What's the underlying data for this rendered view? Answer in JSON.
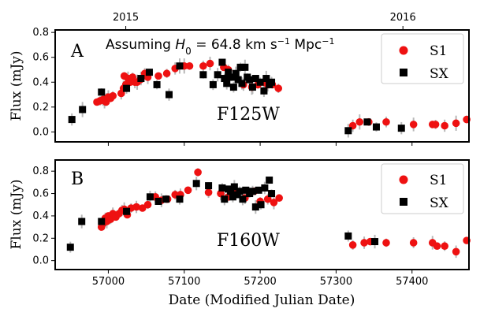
{
  "chart_data": [
    {
      "type": "scatter",
      "panel_label": "A",
      "filter_label": "F125W",
      "annotation": {
        "prefix": "Assuming ",
        "var": "H",
        "sub": "0",
        "value": " = 64.8 km s",
        "exp1": "−1",
        "mid": " Mpc",
        "exp2": "−1"
      },
      "ylabel": "Flux (mJy)",
      "xlabel": "",
      "xlim": [
        56930,
        57475
      ],
      "ylim": [
        -0.08,
        0.82
      ],
      "yticks": [
        0.0,
        0.2,
        0.4,
        0.6,
        0.8
      ],
      "ytick_labels": [
        "0.0",
        "0.2",
        "0.4",
        "0.6",
        "0.8"
      ],
      "xticks": [
        57000,
        57100,
        57200,
        57300,
        57400
      ],
      "top_axis": {
        "ticks": [
          57023,
          57388
        ],
        "labels": [
          "2015",
          "2016"
        ]
      },
      "legend": [
        "S1",
        "SX"
      ],
      "series": [
        {
          "name": "S1",
          "marker": "circle",
          "color": "#ee1111",
          "points": [
            [
              56985,
              0.24
            ],
            [
              56989,
              0.25
            ],
            [
              56993,
              0.26
            ],
            [
              56995,
              0.25
            ],
            [
              56997,
              0.24
            ],
            [
              56998,
              0.27
            ],
            [
              57000,
              0.28
            ],
            [
              57003,
              0.27
            ],
            [
              57006,
              0.29
            ],
            [
              57017,
              0.31
            ],
            [
              57020,
              0.35
            ],
            [
              57021,
              0.45
            ],
            [
              57023,
              0.38
            ],
            [
              57026,
              0.43
            ],
            [
              57029,
              0.4
            ],
            [
              57032,
              0.44
            ],
            [
              57035,
              0.4
            ],
            [
              57038,
              0.4
            ],
            [
              57042,
              0.42
            ],
            [
              57048,
              0.47
            ],
            [
              57052,
              0.44
            ],
            [
              57066,
              0.45
            ],
            [
              57077,
              0.47
            ],
            [
              57088,
              0.51
            ],
            [
              57100,
              0.53
            ],
            [
              57107,
              0.53
            ],
            [
              57125,
              0.53
            ],
            [
              57134,
              0.55
            ],
            [
              57152,
              0.52
            ],
            [
              57158,
              0.5
            ],
            [
              57178,
              0.38
            ],
            [
              57189,
              0.36
            ],
            [
              57197,
              0.38
            ],
            [
              57205,
              0.4
            ],
            [
              57210,
              0.38
            ],
            [
              57216,
              0.38
            ],
            [
              57224,
              0.35
            ],
            [
              57322,
              0.05
            ],
            [
              57331,
              0.08
            ],
            [
              57343,
              0.08
            ],
            [
              57366,
              0.08
            ],
            [
              57402,
              0.06
            ],
            [
              57427,
              0.06
            ],
            [
              57431,
              0.06
            ],
            [
              57443,
              0.05
            ],
            [
              57458,
              0.07
            ],
            [
              57472,
              0.1
            ]
          ]
        },
        {
          "name": "SX",
          "marker": "square",
          "color": "#000000",
          "points": [
            [
              56952,
              0.1
            ],
            [
              56966,
              0.18
            ],
            [
              56991,
              0.32
            ],
            [
              57024,
              0.35
            ],
            [
              57043,
              0.43
            ],
            [
              57054,
              0.48
            ],
            [
              57064,
              0.38
            ],
            [
              57080,
              0.3
            ],
            [
              57094,
              0.53
            ],
            [
              57125,
              0.46
            ],
            [
              57138,
              0.38
            ],
            [
              57144,
              0.46
            ],
            [
              57150,
              0.56
            ],
            [
              57153,
              0.43
            ],
            [
              57156,
              0.39
            ],
            [
              57158,
              0.48
            ],
            [
              57162,
              0.44
            ],
            [
              57165,
              0.36
            ],
            [
              57168,
              0.47
            ],
            [
              57171,
              0.42
            ],
            [
              57174,
              0.52
            ],
            [
              57176,
              0.39
            ],
            [
              57180,
              0.52
            ],
            [
              57183,
              0.44
            ],
            [
              57186,
              0.42
            ],
            [
              57190,
              0.36
            ],
            [
              57194,
              0.43
            ],
            [
              57200,
              0.4
            ],
            [
              57205,
              0.33
            ],
            [
              57208,
              0.43
            ],
            [
              57212,
              0.38
            ],
            [
              57215,
              0.4
            ],
            [
              57316,
              0.01
            ],
            [
              57341,
              0.08
            ],
            [
              57353,
              0.04
            ],
            [
              57386,
              0.03
            ]
          ]
        }
      ]
    },
    {
      "type": "scatter",
      "panel_label": "B",
      "filter_label": "F160W",
      "ylabel": "Flux (mJy)",
      "xlabel": "Date (Modified Julian Date)",
      "xlim": [
        56930,
        57475
      ],
      "ylim": [
        -0.08,
        0.9
      ],
      "yticks": [
        0.0,
        0.2,
        0.4,
        0.6,
        0.8
      ],
      "ytick_labels": [
        "0.0",
        "0.2",
        "0.4",
        "0.6",
        "0.8"
      ],
      "xticks": [
        57000,
        57100,
        57200,
        57300,
        57400
      ],
      "xtick_labels": [
        "57000",
        "57100",
        "57200",
        "57300",
        "57400"
      ],
      "legend": [
        "S1",
        "SX"
      ],
      "series": [
        {
          "name": "S1",
          "marker": "circle",
          "color": "#ee1111",
          "points": [
            [
              56991,
              0.3
            ],
            [
              56993,
              0.33
            ],
            [
              56996,
              0.38
            ],
            [
              56998,
              0.35
            ],
            [
              57000,
              0.4
            ],
            [
              57003,
              0.37
            ],
            [
              57006,
              0.42
            ],
            [
              57010,
              0.39
            ],
            [
              57014,
              0.42
            ],
            [
              57018,
              0.45
            ],
            [
              57021,
              0.46
            ],
            [
              57025,
              0.41
            ],
            [
              57030,
              0.47
            ],
            [
              57037,
              0.48
            ],
            [
              57045,
              0.47
            ],
            [
              57052,
              0.5
            ],
            [
              57062,
              0.57
            ],
            [
              57070,
              0.54
            ],
            [
              57078,
              0.55
            ],
            [
              57088,
              0.59
            ],
            [
              57095,
              0.59
            ],
            [
              57105,
              0.63
            ],
            [
              57118,
              0.79
            ],
            [
              57132,
              0.61
            ],
            [
              57148,
              0.6
            ],
            [
              57158,
              0.57
            ],
            [
              57166,
              0.6
            ],
            [
              57180,
              0.56
            ],
            [
              57192,
              0.62
            ],
            [
              57200,
              0.53
            ],
            [
              57210,
              0.55
            ],
            [
              57218,
              0.52
            ],
            [
              57225,
              0.56
            ],
            [
              57322,
              0.14
            ],
            [
              57337,
              0.16
            ],
            [
              57345,
              0.17
            ],
            [
              57366,
              0.16
            ],
            [
              57402,
              0.16
            ],
            [
              57427,
              0.16
            ],
            [
              57433,
              0.13
            ],
            [
              57443,
              0.13
            ],
            [
              57458,
              0.08
            ],
            [
              57472,
              0.18
            ]
          ]
        },
        {
          "name": "SX",
          "marker": "square",
          "color": "#000000",
          "points": [
            [
              56950,
              0.12
            ],
            [
              56965,
              0.35
            ],
            [
              56991,
              0.35
            ],
            [
              57024,
              0.44
            ],
            [
              57055,
              0.57
            ],
            [
              57066,
              0.53
            ],
            [
              57076,
              0.55
            ],
            [
              57094,
              0.55
            ],
            [
              57116,
              0.69
            ],
            [
              57132,
              0.67
            ],
            [
              57150,
              0.65
            ],
            [
              57153,
              0.55
            ],
            [
              57158,
              0.64
            ],
            [
              57161,
              0.62
            ],
            [
              57164,
              0.57
            ],
            [
              57166,
              0.66
            ],
            [
              57170,
              0.59
            ],
            [
              57173,
              0.62
            ],
            [
              57177,
              0.55
            ],
            [
              57181,
              0.63
            ],
            [
              57186,
              0.6
            ],
            [
              57190,
              0.62
            ],
            [
              57194,
              0.48
            ],
            [
              57198,
              0.63
            ],
            [
              57201,
              0.5
            ],
            [
              57206,
              0.65
            ],
            [
              57212,
              0.72
            ],
            [
              57215,
              0.6
            ],
            [
              57316,
              0.22
            ],
            [
              57351,
              0.17
            ]
          ]
        }
      ]
    }
  ]
}
